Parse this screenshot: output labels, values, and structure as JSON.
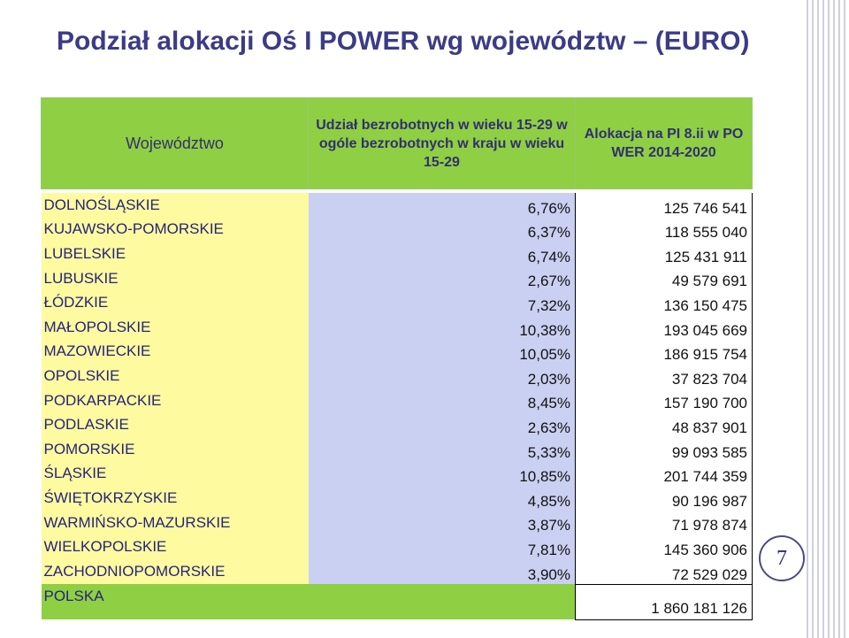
{
  "title": "Podział alokacji Oś I POWER wg województw – (EURO)",
  "table": {
    "headers": {
      "region": "Województwo",
      "share": "Udział bezrobotnych w wieku 15-29 w ogóle bezrobotnych w kraju w wieku 15-29",
      "allocation": "Alokacja na PI 8.ii w PO WER 2014-2020"
    },
    "rows": [
      {
        "name": "DOLNOŚLĄSKIE",
        "share": "6,76%",
        "allocation": "125 746 541"
      },
      {
        "name": "KUJAWSKO-POMORSKIE",
        "share": "6,37%",
        "allocation": "118 555 040"
      },
      {
        "name": "LUBELSKIE",
        "share": "6,74%",
        "allocation": "125 431 911"
      },
      {
        "name": "LUBUSKIE",
        "share": "2,67%",
        "allocation": "49 579 691"
      },
      {
        "name": "ŁÓDZKIE",
        "share": "7,32%",
        "allocation": "136 150 475"
      },
      {
        "name": "MAŁOPOLSKIE",
        "share": "10,38%",
        "allocation": "193 045 669"
      },
      {
        "name": "MAZOWIECKIE",
        "share": "10,05%",
        "allocation": "186 915 754"
      },
      {
        "name": "OPOLSKIE",
        "share": "2,03%",
        "allocation": "37 823 704"
      },
      {
        "name": "PODKARPACKIE",
        "share": "8,45%",
        "allocation": "157 190 700"
      },
      {
        "name": "PODLASKIE",
        "share": "2,63%",
        "allocation": "48 837 901"
      },
      {
        "name": "POMORSKIE",
        "share": "5,33%",
        "allocation": "99 093 585"
      },
      {
        "name": "ŚLĄSKIE",
        "share": "10,85%",
        "allocation": "201 744 359"
      },
      {
        "name": "ŚWIĘTOKRZYSKIE",
        "share": "4,85%",
        "allocation": "90 196 987"
      },
      {
        "name": "WARMIŃSKO-MAZURSKIE",
        "share": "3,87%",
        "allocation": "71 978 874"
      },
      {
        "name": "WIELKOPOLSKIE",
        "share": "7,81%",
        "allocation": "145 360 906"
      },
      {
        "name": "ZACHODNIOPOMORSKIE",
        "share": "3,90%",
        "allocation": "72 529 029"
      }
    ],
    "total": {
      "name": "POLSKA",
      "share": "",
      "allocation": "1 860 181 126"
    }
  },
  "page_number": "7",
  "colors": {
    "title": "#3b3b86",
    "header_bg": "#8fcf44",
    "region_bg": "#fefaa0",
    "share_bg": "#c9d0f2"
  }
}
